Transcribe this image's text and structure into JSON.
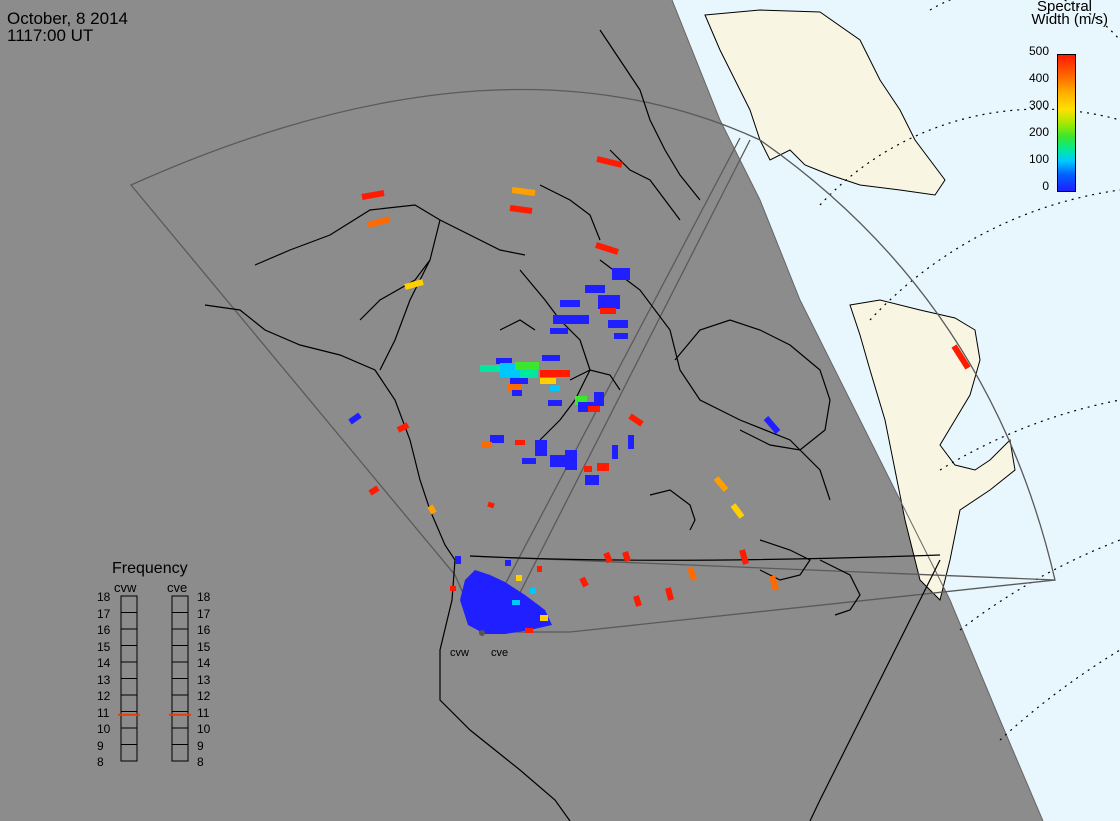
{
  "header": {
    "date": "October, 8 2014",
    "time": "1117:00 UT"
  },
  "colorbar": {
    "title_line1": "Spectral",
    "title_line2": "Width (m/s)",
    "ticks": [
      "500",
      "400",
      "300",
      "200",
      "100",
      "0"
    ]
  },
  "frequency": {
    "title": "Frequency",
    "radar_left": "cvw",
    "radar_right": "cve",
    "levels": [
      "18",
      "17",
      "16",
      "15",
      "14",
      "13",
      "12",
      "11",
      "10",
      "9",
      "8"
    ],
    "cvw_mhz": 10.8,
    "cve_mhz": 10.8
  },
  "sites": {
    "west": "cvw",
    "east": "cve"
  }
}
